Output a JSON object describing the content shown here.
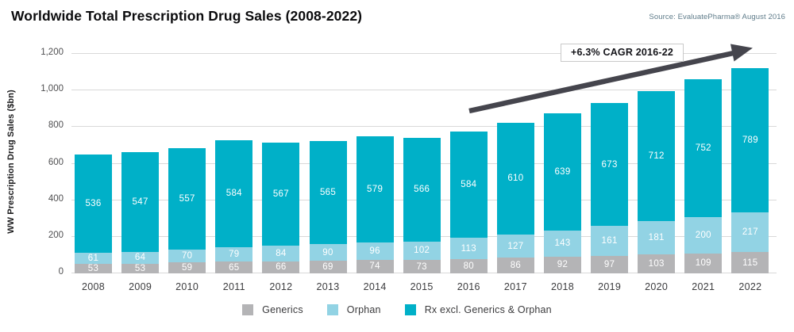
{
  "header": {
    "title": "Worldwide Total Prescription Drug Sales (2008-2022)",
    "source": "Source: EvaluatePharma® August 2016"
  },
  "chart_data": {
    "type": "bar",
    "stacked": true,
    "title": "Worldwide Total Prescription Drug Sales (2008-2022)",
    "xlabel": "",
    "ylabel": "WW Prescription Drug Sales ($bn)",
    "ylim": [
      0,
      1200
    ],
    "ytick_interval": 200,
    "ytick_labels": [
      "0",
      "200",
      "400",
      "600",
      "800",
      "1,000",
      "1,200"
    ],
    "grid": true,
    "legend_position": "bottom",
    "categories": [
      "2008",
      "2009",
      "2010",
      "2011",
      "2012",
      "2013",
      "2014",
      "2015",
      "2016",
      "2017",
      "2018",
      "2019",
      "2020",
      "2021",
      "2022"
    ],
    "series": [
      {
        "name": "Generics",
        "color": "#b4b4b6",
        "values": [
          53,
          53,
          59,
          65,
          66,
          69,
          74,
          73,
          80,
          86,
          92,
          97,
          103,
          109,
          115
        ]
      },
      {
        "name": "Orphan",
        "color": "#92d3e4",
        "values": [
          61,
          64,
          70,
          79,
          84,
          90,
          96,
          102,
          113,
          127,
          143,
          161,
          181,
          200,
          217
        ]
      },
      {
        "name": "Rx excl. Generics & Orphan",
        "color": "#00b0c8",
        "values": [
          536,
          547,
          557,
          584,
          567,
          565,
          579,
          566,
          584,
          610,
          639,
          673,
          712,
          752,
          789
        ]
      }
    ],
    "annotation": {
      "label": "+6.3% CAGR 2016-22",
      "span": "2016 to 2022"
    }
  },
  "colors": {
    "generics": "#b4b4b6",
    "orphan": "#92d3e4",
    "rx": "#00b0c8",
    "gridline": "#d9d9d9",
    "arrow": "#45454d",
    "bar_value_text": "#ffffff"
  }
}
